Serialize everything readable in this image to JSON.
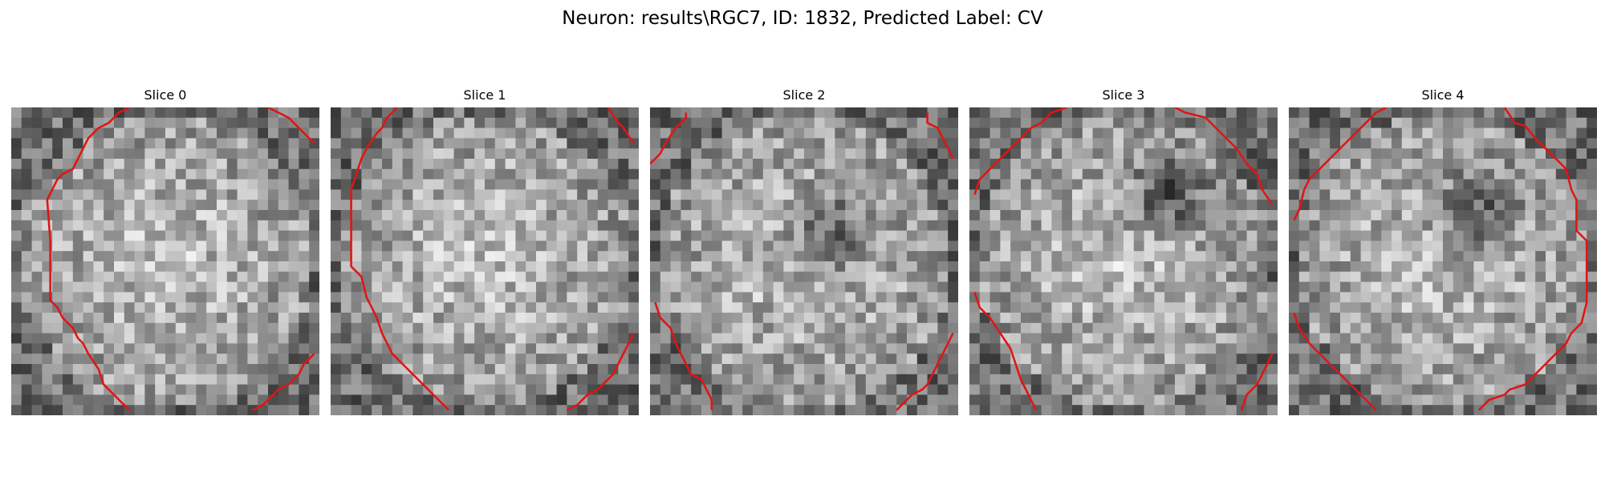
{
  "figure": {
    "suptitle": "Neuron: results\\RGC7, ID: 1832, Predicted Label: CV",
    "contour_color": "#e01515",
    "colormap": "gray",
    "grid_size": 30
  },
  "slices": [
    {
      "title": "Slice 0",
      "dark_center": null,
      "contours": [
        [
          [
            11.5,
            0
          ],
          [
            10.5,
            0.5
          ],
          [
            10,
            1
          ],
          [
            9.5,
            1.5
          ],
          [
            8.5,
            2
          ],
          [
            8,
            2.5
          ],
          [
            7.5,
            3
          ],
          [
            7,
            4
          ],
          [
            6.5,
            5
          ],
          [
            6,
            6
          ],
          [
            5,
            6.5
          ],
          [
            4.5,
            7
          ],
          [
            4,
            8
          ],
          [
            3.5,
            9
          ],
          [
            3.8,
            13
          ],
          [
            3.8,
            18.8
          ],
          [
            4.5,
            19.5
          ],
          [
            5,
            20.5
          ],
          [
            5.5,
            21
          ],
          [
            6,
            21.5
          ],
          [
            6.5,
            22.5
          ],
          [
            7,
            23
          ],
          [
            7.5,
            24
          ],
          [
            8.5,
            25.5
          ],
          [
            9,
            27
          ],
          [
            10,
            28
          ],
          [
            10.5,
            28.5
          ],
          [
            11.5,
            29.5
          ]
        ],
        [
          [
            25,
            0
          ],
          [
            26,
            0.5
          ],
          [
            27,
            1
          ],
          [
            28.5,
            2.5
          ],
          [
            29.5,
            3.5
          ]
        ],
        [
          [
            29.5,
            24
          ],
          [
            28.5,
            25
          ],
          [
            28,
            26
          ],
          [
            27.5,
            26.5
          ],
          [
            27,
            27
          ],
          [
            26,
            27.5
          ],
          [
            25.5,
            28
          ],
          [
            25,
            28.5
          ],
          [
            24.5,
            29
          ],
          [
            23.5,
            29.5
          ]
        ]
      ]
    },
    {
      "title": "Slice 1",
      "dark_center": null,
      "contours": [
        [
          [
            6.5,
            0
          ],
          [
            5.5,
            1
          ],
          [
            5,
            2
          ],
          [
            4.5,
            2.5
          ],
          [
            3.5,
            4
          ],
          [
            3,
            5
          ],
          [
            2,
            8
          ],
          [
            2,
            15.5
          ],
          [
            3,
            16.5
          ],
          [
            3.5,
            18.5
          ],
          [
            4,
            19.5
          ],
          [
            4.5,
            20.5
          ],
          [
            5,
            22
          ],
          [
            5.5,
            23
          ],
          [
            6,
            24
          ],
          [
            7,
            25
          ],
          [
            8,
            26
          ],
          [
            9,
            27
          ],
          [
            10,
            28
          ],
          [
            11.5,
            29.5
          ]
        ],
        [
          [
            27,
            0
          ],
          [
            28,
            1.5
          ],
          [
            28.5,
            2
          ],
          [
            29.5,
            3.5
          ]
        ],
        [
          [
            29.5,
            22
          ],
          [
            29,
            23
          ],
          [
            28.5,
            24
          ],
          [
            28,
            25
          ],
          [
            27.5,
            26
          ],
          [
            27,
            26.5
          ],
          [
            26,
            27.5
          ],
          [
            25,
            28
          ],
          [
            24.5,
            28.5
          ],
          [
            24,
            29
          ],
          [
            23,
            29.5
          ]
        ]
      ]
    },
    {
      "title": "Slice 2",
      "dark_center": [
        17,
        12
      ],
      "contours": [
        [
          [
            0,
            5.5
          ],
          [
            1,
            4.5
          ],
          [
            1.5,
            3.5
          ],
          [
            2.5,
            2
          ],
          [
            3.5,
            1
          ],
          [
            3.5,
            0.5
          ]
        ],
        [
          [
            27,
            0.5
          ],
          [
            27,
            1.5
          ],
          [
            28,
            2
          ],
          [
            28.5,
            3
          ],
          [
            29,
            4
          ],
          [
            29.5,
            5
          ]
        ],
        [
          [
            0.5,
            19
          ],
          [
            1,
            20.5
          ],
          [
            2,
            21.5
          ],
          [
            2.5,
            23
          ],
          [
            3,
            24
          ],
          [
            3.5,
            25
          ],
          [
            4,
            26
          ],
          [
            5,
            26.5
          ],
          [
            5.5,
            27.5
          ],
          [
            6,
            28.5
          ],
          [
            6,
            29.5
          ]
        ],
        [
          [
            29.5,
            22
          ],
          [
            29,
            23
          ],
          [
            28.5,
            24
          ],
          [
            28,
            25
          ],
          [
            27.5,
            26
          ],
          [
            27,
            27
          ],
          [
            26.5,
            27.5
          ],
          [
            25.5,
            28
          ],
          [
            24.5,
            29
          ],
          [
            24,
            29.5
          ]
        ]
      ]
    },
    {
      "title": "Slice 3",
      "dark_center": [
        19,
        8
      ],
      "contours": [
        [
          [
            0.5,
            8.5
          ],
          [
            1,
            7
          ],
          [
            2,
            6
          ],
          [
            3,
            5
          ],
          [
            4,
            4
          ],
          [
            5,
            3
          ],
          [
            6,
            2
          ],
          [
            7,
            1.5
          ],
          [
            8,
            0.5
          ],
          [
            9.5,
            0
          ]
        ],
        [
          [
            20,
            0
          ],
          [
            21,
            0.5
          ],
          [
            23,
            1
          ],
          [
            24,
            2
          ],
          [
            25,
            3
          ],
          [
            26,
            4
          ],
          [
            27,
            5.5
          ],
          [
            28,
            6.5
          ],
          [
            28.5,
            8
          ],
          [
            29.5,
            9.5
          ]
        ],
        [
          [
            0.5,
            18
          ],
          [
            1,
            19.5
          ],
          [
            2,
            20.5
          ],
          [
            3,
            22
          ],
          [
            4,
            23.5
          ],
          [
            4.5,
            25
          ],
          [
            5,
            26.5
          ],
          [
            5.5,
            27.5
          ],
          [
            6.5,
            29.5
          ]
        ],
        [
          [
            29.5,
            24
          ],
          [
            29,
            25
          ],
          [
            28.5,
            26
          ],
          [
            28,
            27
          ],
          [
            27,
            28
          ],
          [
            26.5,
            29.5
          ]
        ]
      ]
    },
    {
      "title": "Slice 4",
      "dark_center": [
        17.5,
        10
      ],
      "contours": [
        [
          [
            9.5,
            0
          ],
          [
            8.5,
            0.5
          ],
          [
            8,
            1
          ],
          [
            7,
            2
          ],
          [
            6,
            3
          ],
          [
            5,
            4
          ],
          [
            4,
            5
          ],
          [
            3,
            6
          ],
          [
            2,
            7
          ],
          [
            1.5,
            8
          ],
          [
            1,
            10
          ],
          [
            0.5,
            11
          ]
        ],
        [
          [
            21,
            0
          ],
          [
            22,
            1.5
          ],
          [
            23,
            1.8
          ],
          [
            24,
            3
          ],
          [
            25,
            4
          ],
          [
            26,
            5
          ],
          [
            27,
            6
          ],
          [
            27.5,
            8
          ],
          [
            28,
            9
          ],
          [
            28,
            12
          ],
          [
            29,
            13
          ],
          [
            29,
            19
          ],
          [
            28.5,
            21
          ],
          [
            27.5,
            22
          ],
          [
            27,
            23
          ],
          [
            26,
            24
          ],
          [
            25,
            25
          ],
          [
            24,
            26
          ],
          [
            23,
            27
          ],
          [
            21.5,
            27.5
          ],
          [
            21,
            28
          ],
          [
            19.5,
            28.5
          ],
          [
            19,
            29
          ],
          [
            18.5,
            29.5
          ]
        ],
        [
          [
            0.5,
            20
          ],
          [
            1,
            21.5
          ],
          [
            2,
            23
          ],
          [
            3,
            24
          ],
          [
            4,
            25
          ],
          [
            5,
            26
          ],
          [
            6,
            27
          ],
          [
            7,
            28
          ],
          [
            8,
            29
          ],
          [
            8.5,
            29.5
          ]
        ]
      ]
    }
  ]
}
